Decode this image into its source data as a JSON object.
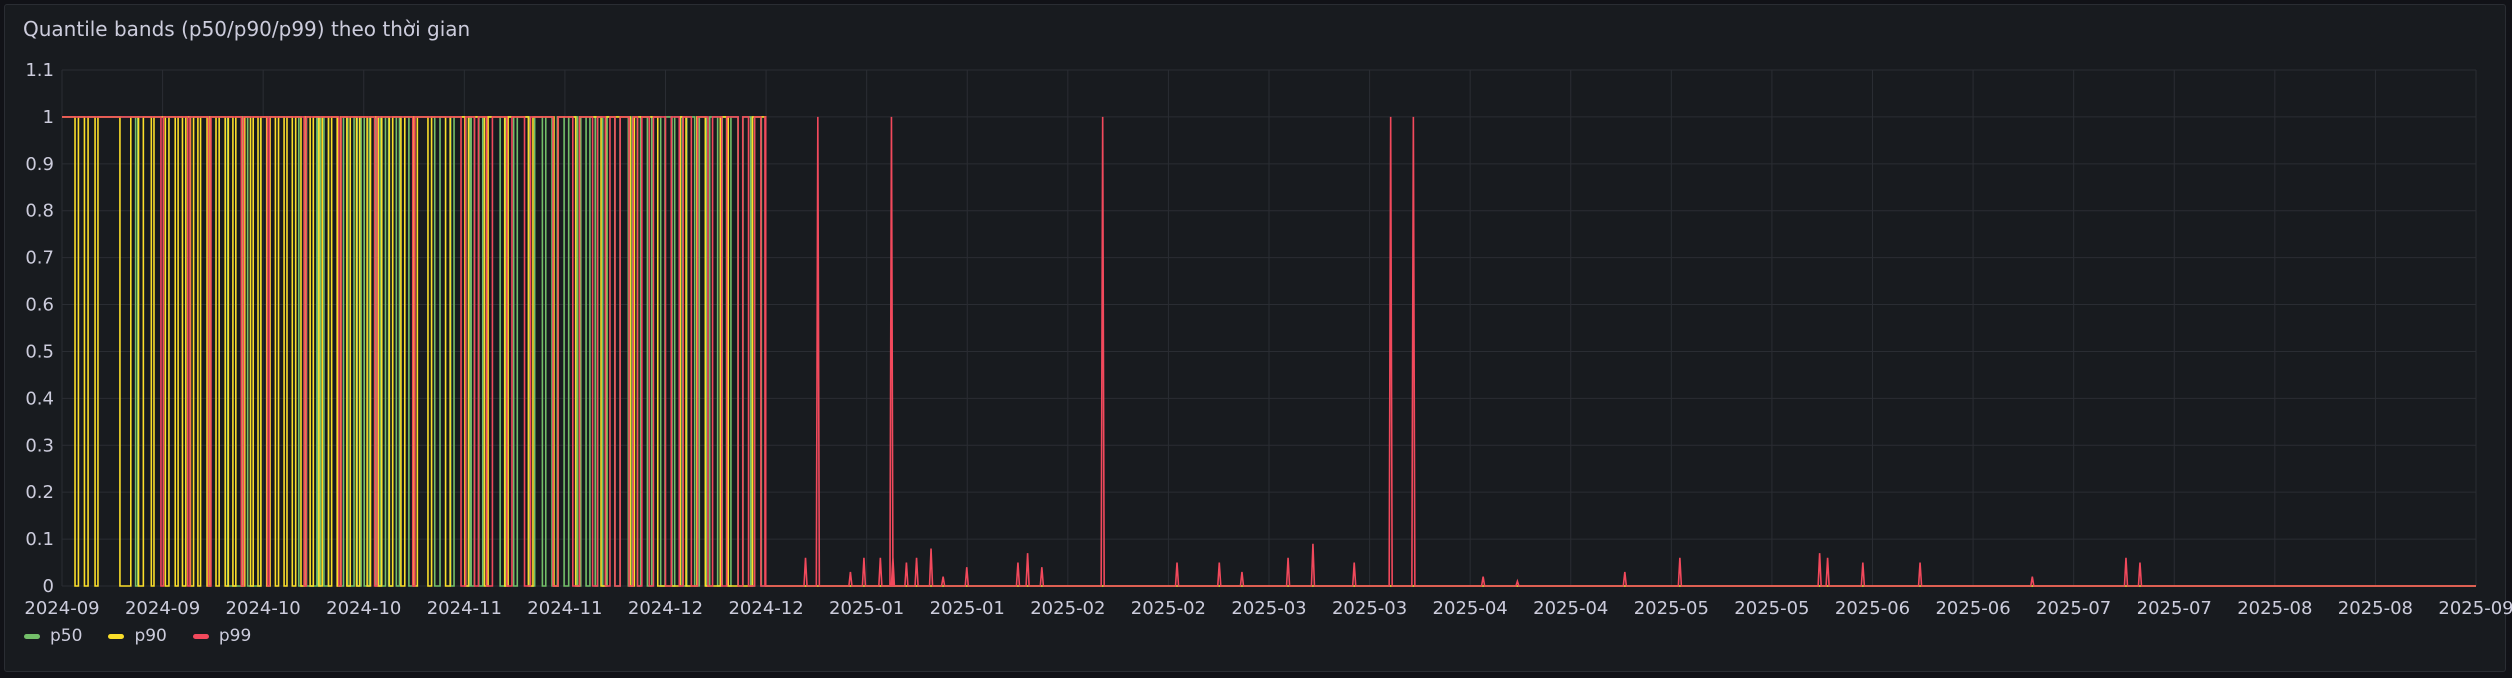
{
  "panel": {
    "title": "Quantile bands (p50/p90/p99) theo thời gian"
  },
  "chart_data": {
    "type": "line",
    "ylim": [
      0,
      1.1
    ],
    "y_ticks": [
      "0",
      "0.1",
      "0.2",
      "0.3",
      "0.4",
      "0.5",
      "0.6",
      "0.7",
      "0.8",
      "0.9",
      "1",
      "1.1"
    ],
    "x_ticks": [
      "2024-09",
      "2024-09",
      "2024-10",
      "2024-10",
      "2024-11",
      "2024-11",
      "2024-12",
      "2024-12",
      "2025-01",
      "2025-01",
      "2025-02",
      "2025-02",
      "2025-03",
      "2025-03",
      "2025-04",
      "2025-04",
      "2025-05",
      "2025-05",
      "2025-06",
      "2025-06",
      "2025-07",
      "2025-07",
      "2025-08",
      "2025-08",
      "2025-09"
    ],
    "grid": true,
    "legend_position": "bottom-left",
    "series": [
      {
        "name": "p50",
        "color": "#73bf69",
        "zero_intervals": [
          [
            0.0305,
            0.0314
          ],
          [
            0.0686,
            0.0747
          ],
          [
            0.0769,
            0.0823
          ],
          [
            0.0981,
            0.1007
          ],
          [
            0.1013,
            0.1056
          ],
          [
            0.1061,
            0.107
          ],
          [
            0.1085,
            0.1104
          ],
          [
            0.1142,
            0.1166
          ],
          [
            0.1184,
            0.121
          ],
          [
            0.1223,
            0.1239
          ],
          [
            0.1252,
            0.1273
          ],
          [
            0.13,
            0.1318
          ],
          [
            0.1325,
            0.134
          ],
          [
            0.1353,
            0.137
          ],
          [
            0.1385,
            0.1398
          ],
          [
            0.1437,
            0.1456
          ],
          [
            0.1544,
            0.1566
          ],
          [
            0.161,
            0.1624
          ],
          [
            0.1673,
            0.169
          ],
          [
            0.1695,
            0.1708
          ],
          [
            0.1727,
            0.1743
          ],
          [
            0.1815,
            0.1836
          ],
          [
            0.1871,
            0.1886
          ],
          [
            0.1937,
            0.1958
          ],
          [
            0.199,
            0.2004
          ],
          [
            0.203,
            0.2052
          ],
          [
            0.208,
            0.2099
          ],
          [
            0.2135,
            0.2149
          ],
          [
            0.2171,
            0.2187
          ],
          [
            0.2209,
            0.2219
          ],
          [
            0.224,
            0.2258
          ],
          [
            0.229,
            0.2312
          ],
          [
            0.2346,
            0.2363
          ],
          [
            0.2384,
            0.2397
          ],
          [
            0.2425,
            0.2443
          ],
          [
            0.248,
            0.2498
          ],
          [
            0.2527,
            0.2538
          ],
          [
            0.2569,
            0.2588
          ],
          [
            0.2621,
            0.264
          ],
          [
            0.2669,
            0.2683
          ],
          [
            0.2716,
            0.2735
          ],
          [
            0.2753,
            0.2771
          ],
          [
            0.28,
            0.2821
          ],
          [
            0.2853,
            0.2869
          ],
          [
            0.2897,
            0.2915
          ]
        ],
        "peaks": []
      },
      {
        "name": "p90",
        "color": "#fade2a",
        "zero_intervals": [
          [
            0.0054,
            0.0068
          ],
          [
            0.0093,
            0.0108
          ],
          [
            0.0137,
            0.0149
          ],
          [
            0.024,
            0.0285
          ],
          [
            0.0317,
            0.0337
          ],
          [
            0.037,
            0.0381
          ],
          [
            0.0428,
            0.0443
          ],
          [
            0.0469,
            0.0481
          ],
          [
            0.0499,
            0.0513
          ],
          [
            0.0532,
            0.0545
          ],
          [
            0.0563,
            0.0574
          ],
          [
            0.0601,
            0.0614
          ],
          [
            0.0638,
            0.0651
          ],
          [
            0.0676,
            0.0689
          ],
          [
            0.0708,
            0.072
          ],
          [
            0.0744,
            0.0757
          ],
          [
            0.0781,
            0.0792
          ],
          [
            0.0812,
            0.0824
          ],
          [
            0.0848,
            0.0862
          ],
          [
            0.0884,
            0.0897
          ],
          [
            0.092,
            0.0932
          ],
          [
            0.0954,
            0.0968
          ],
          [
            0.099,
            0.1004
          ],
          [
            0.1028,
            0.1041
          ],
          [
            0.1064,
            0.1078
          ],
          [
            0.1104,
            0.1117
          ],
          [
            0.114,
            0.1155
          ],
          [
            0.118,
            0.1194
          ],
          [
            0.122,
            0.1233
          ],
          [
            0.1264,
            0.1278
          ],
          [
            0.131,
            0.1324
          ],
          [
            0.1356,
            0.137
          ],
          [
            0.1404,
            0.142
          ],
          [
            0.1458,
            0.1472
          ],
          [
            0.1516,
            0.1531
          ],
          [
            0.1589,
            0.1608
          ],
          [
            0.1669,
            0.1684
          ],
          [
            0.175,
            0.1765
          ],
          [
            0.1834,
            0.1848
          ],
          [
            0.1932,
            0.1951
          ],
          [
            0.2038,
            0.2055
          ],
          [
            0.2128,
            0.2144
          ],
          [
            0.2233,
            0.2252
          ],
          [
            0.2355,
            0.2371
          ],
          [
            0.2468,
            0.2561
          ],
          [
            0.2585,
            0.263
          ],
          [
            0.2665,
            0.2727
          ],
          [
            0.276,
            0.286
          ]
        ],
        "peaks": []
      },
      {
        "name": "p99",
        "color": "#f2495c",
        "zero_intervals": [
          [
            0.041,
            0.042
          ],
          [
            0.0521,
            0.053
          ],
          [
            0.0607,
            0.0617
          ],
          [
            0.0743,
            0.0752
          ],
          [
            0.0851,
            0.0859
          ],
          [
            0.1003,
            0.1012
          ],
          [
            0.1147,
            0.1156
          ],
          [
            0.1295,
            0.1305
          ],
          [
            0.1453,
            0.1462
          ],
          [
            0.1653,
            0.1672
          ],
          [
            0.1709,
            0.1725
          ],
          [
            0.1759,
            0.1783
          ],
          [
            0.1843,
            0.1864
          ],
          [
            0.1916,
            0.1941
          ],
          [
            0.2034,
            0.2055
          ],
          [
            0.2116,
            0.2144
          ],
          [
            0.2198,
            0.2218
          ],
          [
            0.2251,
            0.227
          ],
          [
            0.2291,
            0.2312
          ],
          [
            0.2349,
            0.2366
          ],
          [
            0.2384,
            0.2402
          ],
          [
            0.2433,
            0.245
          ],
          [
            0.25,
            0.2524
          ],
          [
            0.2557,
            0.2573
          ],
          [
            0.2607,
            0.2633
          ],
          [
            0.2676,
            0.2695
          ],
          [
            0.2733,
            0.2754
          ],
          [
            0.2801,
            0.282
          ],
          [
            0.2844,
            0.2869
          ],
          [
            0.2895,
            0.2912
          ]
        ],
        "peaks": [
          [
            0.308,
            0.06
          ],
          [
            0.3131,
            1.0
          ],
          [
            0.3266,
            0.03
          ],
          [
            0.3322,
            0.06
          ],
          [
            0.339,
            0.06
          ],
          [
            0.3442,
            0.06
          ],
          [
            0.3436,
            1.0
          ],
          [
            0.3498,
            0.05
          ],
          [
            0.354,
            0.06
          ],
          [
            0.36,
            0.08
          ],
          [
            0.365,
            0.02
          ],
          [
            0.3748,
            0.04
          ],
          [
            0.396,
            0.05
          ],
          [
            0.4,
            0.07
          ],
          [
            0.4059,
            0.04
          ],
          [
            0.4311,
            1.0
          ],
          [
            0.4619,
            0.05
          ],
          [
            0.4794,
            0.05
          ],
          [
            0.4888,
            0.03
          ],
          [
            0.5079,
            0.06
          ],
          [
            0.5182,
            0.09
          ],
          [
            0.5353,
            0.05
          ],
          [
            0.5504,
            1.0
          ],
          [
            0.5598,
            1.0
          ],
          [
            0.5887,
            0.02
          ],
          [
            0.6029,
            0.01
          ],
          [
            0.6474,
            0.03
          ],
          [
            0.6702,
            0.06
          ],
          [
            0.7281,
            0.07
          ],
          [
            0.7314,
            0.06
          ],
          [
            0.746,
            0.05
          ],
          [
            0.7697,
            0.05
          ],
          [
            0.8162,
            0.02
          ],
          [
            0.855,
            0.06
          ],
          [
            0.8608,
            0.05
          ]
        ]
      }
    ]
  }
}
